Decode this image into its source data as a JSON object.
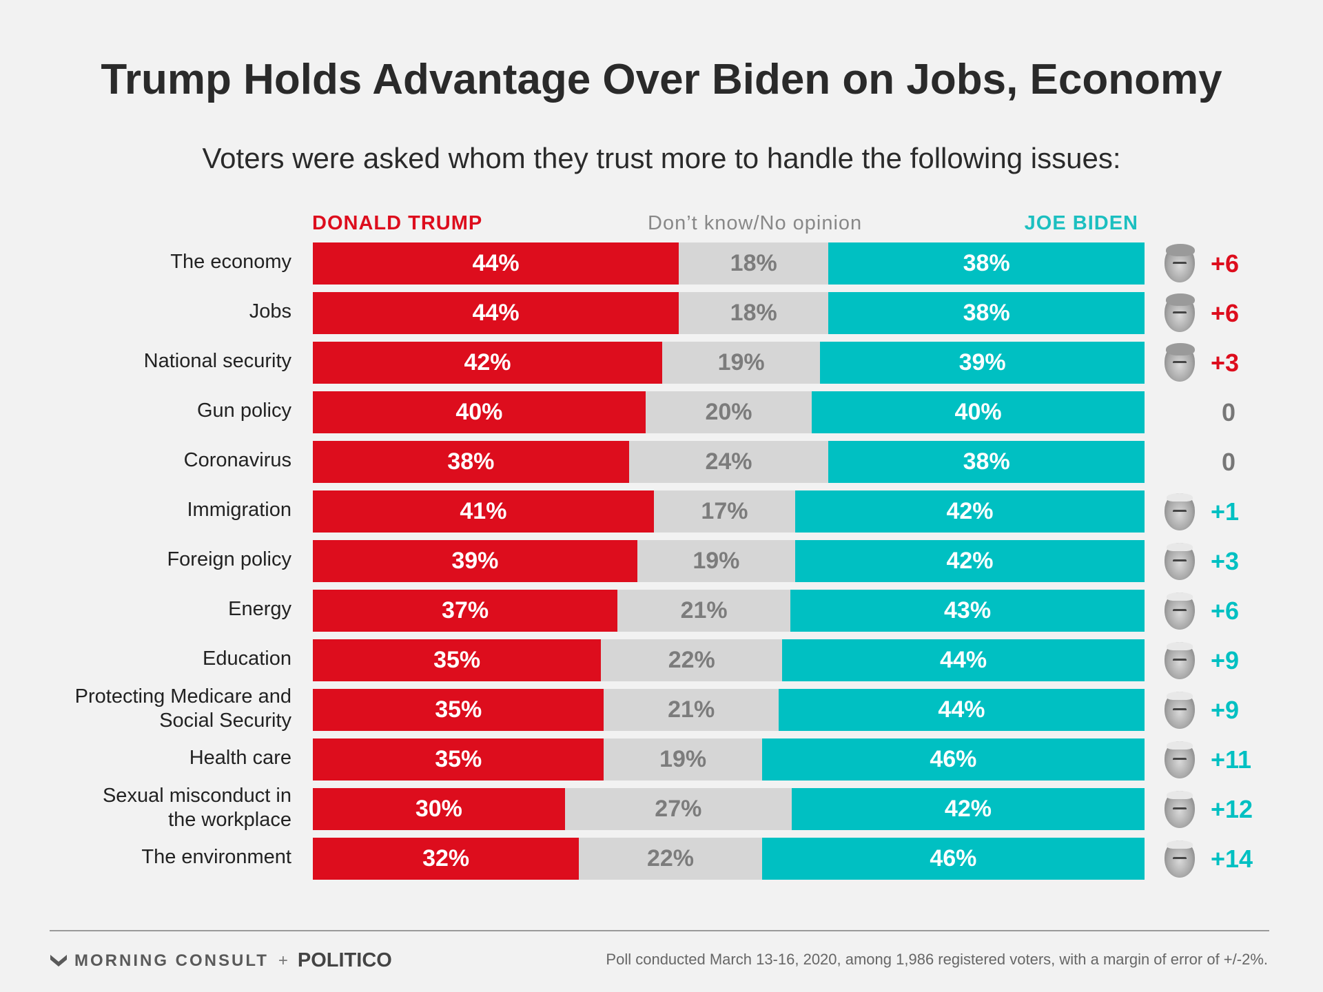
{
  "title": "Trump Holds Advantage Over Biden on Jobs, Economy",
  "subtitle": "Voters were asked whom they trust more to handle the following issues:",
  "legend": {
    "trump": "DONALD TRUMP",
    "dont_know": "Don’t know/No opinion",
    "biden": "JOE BIDEN"
  },
  "colors": {
    "trump": "#dd0d1d",
    "dont_know": "#d6d6d6",
    "biden": "#00c0c2",
    "neutral_margin": "#777777"
  },
  "chart_data": {
    "type": "bar",
    "orientation": "horizontal",
    "stacked": true,
    "categories": [
      "The economy",
      "Jobs",
      "National security",
      "Gun policy",
      "Coronavirus",
      "Immigration",
      "Foreign policy",
      "Energy",
      "Education",
      "Protecting Medicare and Social Security",
      "Health care",
      "Sexual misconduct in the workplace",
      "The environment"
    ],
    "category_lines": [
      [
        "The economy"
      ],
      [
        "Jobs"
      ],
      [
        "National security"
      ],
      [
        "Gun policy"
      ],
      [
        "Coronavirus"
      ],
      [
        "Immigration"
      ],
      [
        "Foreign policy"
      ],
      [
        "Energy"
      ],
      [
        "Education"
      ],
      [
        "Protecting Medicare and",
        "Social Security"
      ],
      [
        "Health care"
      ],
      [
        "Sexual misconduct in",
        "the workplace"
      ],
      [
        "The environment"
      ]
    ],
    "series": [
      {
        "name": "DONALD TRUMP",
        "values": [
          44,
          44,
          42,
          40,
          38,
          41,
          39,
          37,
          35,
          35,
          35,
          30,
          32
        ]
      },
      {
        "name": "Don’t know/No opinion",
        "values": [
          18,
          18,
          19,
          20,
          24,
          17,
          19,
          21,
          22,
          21,
          19,
          27,
          22
        ]
      },
      {
        "name": "JOE BIDEN",
        "values": [
          38,
          38,
          39,
          40,
          38,
          42,
          42,
          43,
          44,
          44,
          46,
          42,
          46
        ]
      }
    ],
    "value_suffix": "%",
    "margins": [
      "+6",
      "+6",
      "+3",
      "0",
      "0",
      "+1",
      "+3",
      "+6",
      "+9",
      "+9",
      "+11",
      "+12",
      "+14"
    ],
    "margin_leader": [
      "trump",
      "trump",
      "trump",
      "tie",
      "tie",
      "biden",
      "biden",
      "biden",
      "biden",
      "biden",
      "biden",
      "biden",
      "biden"
    ],
    "leader_icons": [
      "trump-face-icon",
      "trump-face-icon",
      "trump-face-icon",
      null,
      null,
      "biden-face-icon",
      "biden-face-icon",
      "biden-face-icon",
      "biden-face-icon",
      "biden-face-icon",
      "biden-face-icon",
      "biden-face-icon",
      "biden-face-icon"
    ],
    "xlim": [
      0,
      100
    ],
    "grid": false,
    "legend_position": "top"
  },
  "footer": {
    "logo_left": "MORNING CONSULT",
    "logo_plus": "+",
    "logo_right": "POLITICO",
    "note": "Poll conducted March 13-16, 2020, among 1,986 registered voters, with a margin of error of +/-2%."
  }
}
